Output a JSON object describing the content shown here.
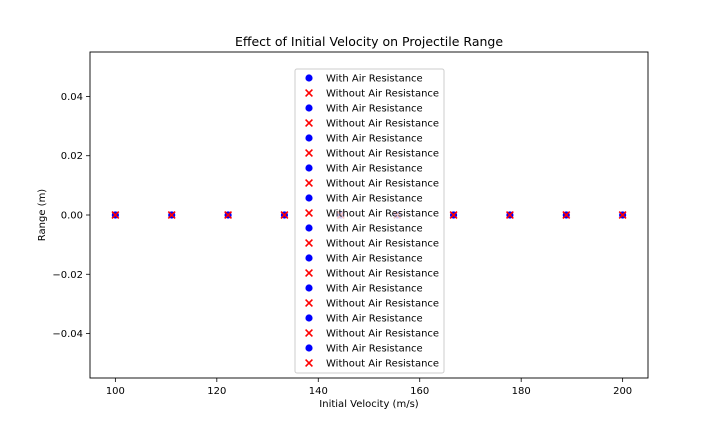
{
  "chart_data": {
    "type": "scatter",
    "title": "Effect of Initial Velocity on Projectile Range",
    "xlabel": "Initial Velocity (m/s)",
    "ylabel": "Range (m)",
    "xlim": [
      95,
      205
    ],
    "ylim": [
      -0.055,
      0.055
    ],
    "xticks": [
      {
        "value": 100,
        "label": "100"
      },
      {
        "value": 120,
        "label": "120"
      },
      {
        "value": 140,
        "label": "140"
      },
      {
        "value": 160,
        "label": "160"
      },
      {
        "value": 180,
        "label": "180"
      },
      {
        "value": 200,
        "label": "200"
      }
    ],
    "yticks": [
      {
        "value": 0.04,
        "label": "0.04"
      },
      {
        "value": 0.02,
        "label": "0.02"
      },
      {
        "value": 0.0,
        "label": "0.00"
      },
      {
        "value": -0.02,
        "label": "−0.02"
      },
      {
        "value": -0.04,
        "label": "−0.04"
      }
    ],
    "grid": false,
    "legend_position": "center",
    "series": [
      {
        "name": "With Air Resistance",
        "marker": "circle",
        "color": "#0000ff",
        "x": [
          100
        ],
        "y": [
          0
        ]
      },
      {
        "name": "Without Air Resistance",
        "marker": "x",
        "color": "#ff0000",
        "x": [
          100
        ],
        "y": [
          0
        ]
      },
      {
        "name": "With Air Resistance",
        "marker": "circle",
        "color": "#0000ff",
        "x": [
          111.11
        ],
        "y": [
          0
        ]
      },
      {
        "name": "Without Air Resistance",
        "marker": "x",
        "color": "#ff0000",
        "x": [
          111.11
        ],
        "y": [
          0
        ]
      },
      {
        "name": "With Air Resistance",
        "marker": "circle",
        "color": "#0000ff",
        "x": [
          122.22
        ],
        "y": [
          0
        ]
      },
      {
        "name": "Without Air Resistance",
        "marker": "x",
        "color": "#ff0000",
        "x": [
          122.22
        ],
        "y": [
          0
        ]
      },
      {
        "name": "With Air Resistance",
        "marker": "circle",
        "color": "#0000ff",
        "x": [
          133.33
        ],
        "y": [
          0
        ]
      },
      {
        "name": "Without Air Resistance",
        "marker": "x",
        "color": "#ff0000",
        "x": [
          133.33
        ],
        "y": [
          0
        ]
      },
      {
        "name": "With Air Resistance",
        "marker": "circle",
        "color": "#0000ff",
        "x": [
          144.44
        ],
        "y": [
          0
        ]
      },
      {
        "name": "Without Air Resistance",
        "marker": "x",
        "color": "#ff0000",
        "x": [
          144.44
        ],
        "y": [
          0
        ]
      },
      {
        "name": "With Air Resistance",
        "marker": "circle",
        "color": "#0000ff",
        "x": [
          155.56
        ],
        "y": [
          0
        ]
      },
      {
        "name": "Without Air Resistance",
        "marker": "x",
        "color": "#ff0000",
        "x": [
          155.56
        ],
        "y": [
          0
        ]
      },
      {
        "name": "With Air Resistance",
        "marker": "circle",
        "color": "#0000ff",
        "x": [
          166.67
        ],
        "y": [
          0
        ]
      },
      {
        "name": "Without Air Resistance",
        "marker": "x",
        "color": "#ff0000",
        "x": [
          166.67
        ],
        "y": [
          0
        ]
      },
      {
        "name": "With Air Resistance",
        "marker": "circle",
        "color": "#0000ff",
        "x": [
          177.78
        ],
        "y": [
          0
        ]
      },
      {
        "name": "Without Air Resistance",
        "marker": "x",
        "color": "#ff0000",
        "x": [
          177.78
        ],
        "y": [
          0
        ]
      },
      {
        "name": "With Air Resistance",
        "marker": "circle",
        "color": "#0000ff",
        "x": [
          188.89
        ],
        "y": [
          0
        ]
      },
      {
        "name": "Without Air Resistance",
        "marker": "x",
        "color": "#ff0000",
        "x": [
          188.89
        ],
        "y": [
          0
        ]
      },
      {
        "name": "With Air Resistance",
        "marker": "circle",
        "color": "#0000ff",
        "x": [
          200
        ],
        "y": [
          0
        ]
      },
      {
        "name": "Without Air Resistance",
        "marker": "x",
        "color": "#ff0000",
        "x": [
          200
        ],
        "y": [
          0
        ]
      }
    ]
  }
}
